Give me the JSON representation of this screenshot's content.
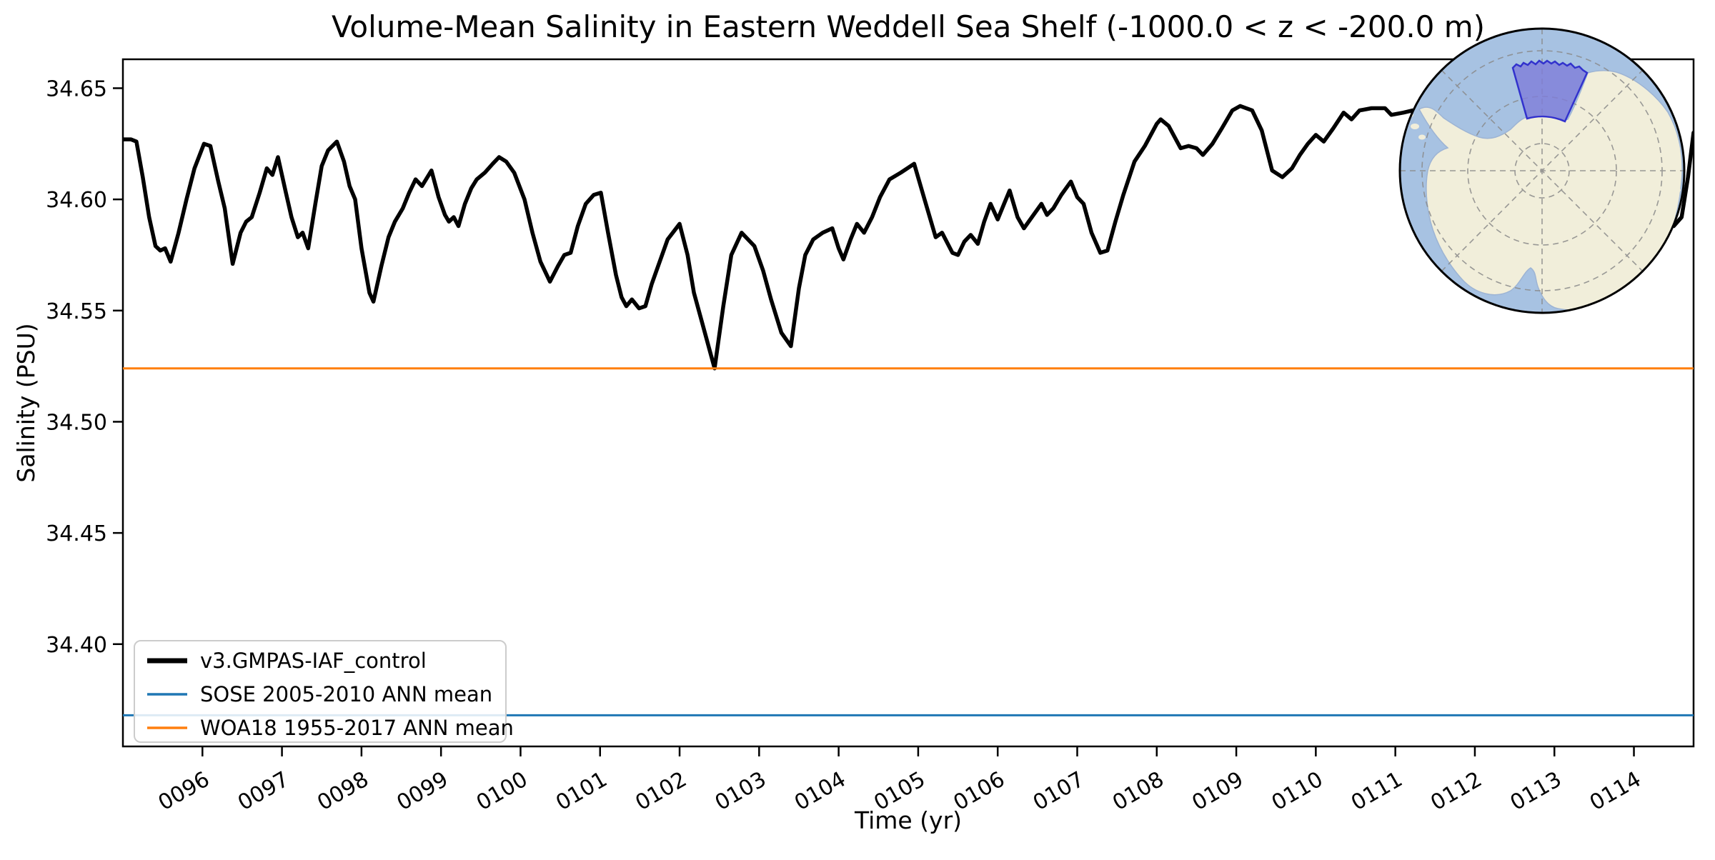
{
  "figure": {
    "title": "Volume-Mean Salinity in Eastern Weddell Sea Shelf (-1000.0 < z < -200.0 m)",
    "xlabel": "Time (yr)",
    "ylabel": "Salinity (PSU)"
  },
  "chart_data": {
    "type": "line",
    "title": "Volume-Mean Salinity in Eastern Weddell Sea Shelf (-1000.0 < z < -200.0 m)",
    "xlabel": "Time (yr)",
    "ylabel": "Salinity (PSU)",
    "xlim": [
      95.0,
      114.75
    ],
    "ylim": [
      34.354,
      34.663
    ],
    "grid": false,
    "xticks": [
      {
        "value": 96,
        "label": "0096"
      },
      {
        "value": 97,
        "label": "0097"
      },
      {
        "value": 98,
        "label": "0098"
      },
      {
        "value": 99,
        "label": "0099"
      },
      {
        "value": 100,
        "label": "0100"
      },
      {
        "value": 101,
        "label": "0101"
      },
      {
        "value": 102,
        "label": "0102"
      },
      {
        "value": 103,
        "label": "0103"
      },
      {
        "value": 104,
        "label": "0104"
      },
      {
        "value": 105,
        "label": "0105"
      },
      {
        "value": 106,
        "label": "0106"
      },
      {
        "value": 107,
        "label": "0107"
      },
      {
        "value": 108,
        "label": "0108"
      },
      {
        "value": 109,
        "label": "0109"
      },
      {
        "value": 110,
        "label": "0110"
      },
      {
        "value": 111,
        "label": "0111"
      },
      {
        "value": 112,
        "label": "0112"
      },
      {
        "value": 113,
        "label": "0113"
      },
      {
        "value": 114,
        "label": "0114"
      }
    ],
    "xtick_rotation": 30,
    "yticks": [
      {
        "value": 34.4,
        "label": "34.40"
      },
      {
        "value": 34.45,
        "label": "34.45"
      },
      {
        "value": 34.5,
        "label": "34.50"
      },
      {
        "value": 34.55,
        "label": "34.55"
      },
      {
        "value": 34.6,
        "label": "34.60"
      },
      {
        "value": 34.65,
        "label": "34.65"
      }
    ],
    "series": [
      {
        "name": "v3.GMPAS-IAF_control",
        "kind": "line",
        "color": "#000000",
        "linewidth": 5.5,
        "x": [
          95.0,
          95.1,
          95.17,
          95.25,
          95.33,
          95.41,
          95.47,
          95.53,
          95.6,
          95.7,
          95.8,
          95.9,
          96.02,
          96.1,
          96.2,
          96.28,
          96.38,
          96.48,
          96.55,
          96.62,
          96.72,
          96.81,
          96.88,
          96.95,
          97.05,
          97.12,
          97.2,
          97.26,
          97.33,
          97.42,
          97.5,
          97.58,
          97.69,
          97.78,
          97.85,
          97.92,
          98.0,
          98.1,
          98.15,
          98.25,
          98.34,
          98.42,
          98.52,
          98.6,
          98.68,
          98.76,
          98.88,
          98.97,
          99.05,
          99.1,
          99.16,
          99.22,
          99.3,
          99.38,
          99.45,
          99.55,
          99.65,
          99.73,
          99.82,
          99.92,
          100.05,
          100.15,
          100.25,
          100.37,
          100.47,
          100.55,
          100.63,
          100.72,
          100.82,
          100.92,
          101.01,
          101.1,
          101.2,
          101.27,
          101.33,
          101.4,
          101.49,
          101.57,
          101.65,
          101.75,
          101.85,
          102.0,
          102.1,
          102.18,
          102.28,
          102.44,
          102.55,
          102.65,
          102.78,
          102.94,
          103.05,
          103.15,
          103.28,
          103.4,
          103.5,
          103.58,
          103.68,
          103.8,
          103.92,
          104.0,
          104.06,
          104.15,
          104.23,
          104.32,
          104.42,
          104.52,
          104.64,
          104.78,
          104.95,
          105.08,
          105.22,
          105.3,
          105.43,
          105.5,
          105.58,
          105.66,
          105.75,
          105.83,
          105.91,
          106.0,
          106.08,
          106.15,
          106.25,
          106.33,
          106.45,
          106.55,
          106.62,
          106.7,
          106.8,
          106.92,
          107.0,
          107.08,
          107.18,
          107.29,
          107.38,
          107.48,
          107.58,
          107.72,
          107.85,
          108.0,
          108.05,
          108.15,
          108.3,
          108.4,
          108.5,
          108.58,
          108.7,
          108.82,
          108.95,
          109.05,
          109.2,
          109.32,
          109.45,
          109.58,
          109.7,
          109.8,
          109.9,
          110.0,
          110.1,
          110.22,
          110.35,
          110.45,
          110.55,
          110.7,
          110.87,
          110.95,
          111.1,
          111.22,
          111.4,
          111.6,
          111.75,
          111.9,
          112.1,
          112.3,
          112.5,
          112.7,
          112.85,
          113.0,
          113.2,
          113.4,
          113.6,
          113.75,
          113.9,
          114.05,
          114.2,
          114.35,
          114.5,
          114.6,
          114.68,
          114.75
        ],
        "y": [
          34.627,
          34.627,
          34.626,
          34.61,
          34.592,
          34.579,
          34.577,
          34.578,
          34.572,
          34.585,
          34.6,
          34.614,
          34.625,
          34.624,
          34.608,
          34.596,
          34.571,
          34.585,
          34.59,
          34.592,
          34.603,
          34.614,
          34.611,
          34.619,
          34.603,
          34.592,
          34.583,
          34.585,
          34.578,
          34.598,
          34.615,
          34.622,
          34.626,
          34.617,
          34.606,
          34.6,
          34.578,
          34.558,
          34.554,
          34.57,
          34.583,
          34.59,
          34.596,
          34.603,
          34.609,
          34.606,
          34.613,
          34.601,
          34.593,
          34.59,
          34.592,
          34.588,
          34.598,
          34.605,
          34.609,
          34.612,
          34.616,
          34.619,
          34.617,
          34.612,
          34.6,
          34.585,
          34.572,
          34.563,
          34.57,
          34.575,
          34.576,
          34.588,
          34.598,
          34.602,
          34.603,
          34.585,
          34.566,
          34.556,
          34.552,
          34.555,
          34.551,
          34.552,
          34.562,
          34.572,
          34.582,
          34.589,
          34.575,
          34.558,
          34.545,
          34.524,
          34.552,
          34.575,
          34.585,
          34.579,
          34.568,
          34.555,
          34.54,
          34.534,
          34.56,
          34.575,
          34.582,
          34.585,
          34.587,
          34.578,
          34.573,
          34.582,
          34.589,
          34.585,
          34.592,
          34.601,
          34.609,
          34.612,
          34.616,
          34.6,
          34.583,
          34.585,
          34.576,
          34.575,
          34.581,
          34.584,
          34.58,
          34.59,
          34.598,
          34.591,
          34.598,
          34.604,
          34.592,
          34.587,
          34.593,
          34.598,
          34.593,
          34.596,
          34.602,
          34.608,
          34.601,
          34.598,
          34.585,
          34.576,
          34.577,
          34.59,
          34.602,
          34.617,
          34.624,
          34.634,
          34.636,
          34.633,
          34.623,
          34.624,
          34.623,
          34.62,
          34.625,
          34.632,
          34.64,
          34.642,
          34.64,
          34.631,
          34.613,
          34.61,
          34.614,
          34.62,
          34.625,
          34.629,
          34.626,
          34.632,
          34.639,
          34.636,
          34.64,
          34.641,
          34.641,
          34.638,
          34.639,
          34.64,
          34.635,
          34.612,
          34.596,
          34.605,
          34.622,
          34.634,
          34.625,
          34.605,
          34.59,
          34.6,
          34.618,
          34.63,
          34.622,
          34.6,
          34.585,
          34.572,
          34.58,
          34.59,
          34.588,
          34.592,
          34.61,
          34.63
        ]
      },
      {
        "name": "SOSE 2005-2010 ANN mean",
        "kind": "hline",
        "color": "#1f77b4",
        "linewidth": 3,
        "value": 34.368
      },
      {
        "name": "WOA18 1955-2017 ANN mean",
        "kind": "hline",
        "color": "#ff7f0e",
        "linewidth": 3,
        "value": 34.524
      }
    ],
    "legend": {
      "position": "lower left",
      "entries": [
        {
          "label": "v3.GMPAS-IAF_control",
          "color": "#000000",
          "linewidth": 7
        },
        {
          "label": "SOSE 2005-2010 ANN mean",
          "color": "#1f77b4",
          "linewidth": 3.5
        },
        {
          "label": "WOA18 1955-2017 ANN mean",
          "color": "#ff7f0e",
          "linewidth": 3.5
        }
      ]
    }
  },
  "inset_map": {
    "colors": {
      "ocean": "#a7c2e2",
      "land": "#f1eeda",
      "region_fill": "#7f7dd9",
      "region_border": "#3232cd",
      "graticule": "#8a8a8a",
      "rim": "#000000"
    }
  }
}
